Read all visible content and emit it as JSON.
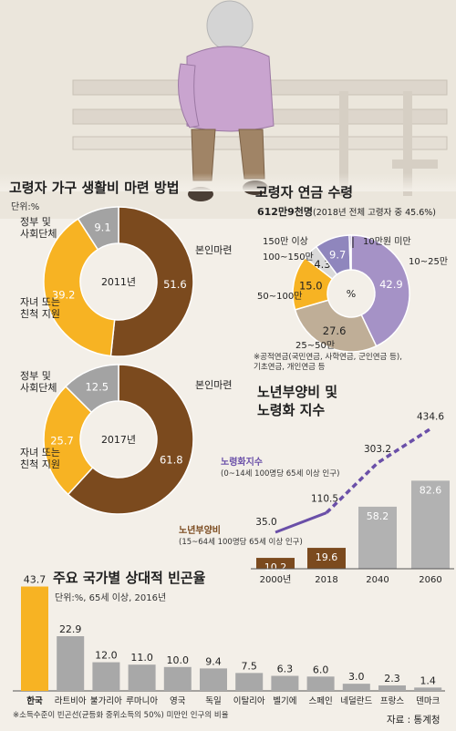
{
  "illustration": {
    "icon": "elderly-person-on-bench"
  },
  "livelihood": {
    "title": "고령자 가구 생활비 마련 방법",
    "unit": "단위:%",
    "labels": {
      "self": "본인마련",
      "gov": [
        "정부 및",
        "사회단체"
      ],
      "children": [
        "자녀 또는",
        "친척 지원"
      ]
    }
  },
  "pension": {
    "title": "고령자 연금 수령",
    "total_bold": "612만9천명",
    "total_paren": "(2018년 전체 고령자 중 45.6%)",
    "center": "%",
    "note": [
      "※공적연금(국민연금, 사학연금, 군인연금 등),",
      "기초연금, 개인연금 등"
    ]
  },
  "dependency": {
    "title": [
      "노년부양비 및",
      "노령화 지수"
    ],
    "aging_label": "노령화지수",
    "aging_desc": "(0~14세 100명당 65세 이상 인구)",
    "dep_label": "노년부양비",
    "dep_desc": "(15~64세 100명당 65세 이상 인구)"
  },
  "poverty": {
    "title": "주요 국가별 상대적 빈곤율",
    "unit": "단위:%, 65세 이상, 2016년",
    "note": "※소득수준이 빈곤선(균등화 중위소득의 50%) 미만인 인구의 비율",
    "source": "자료 : 통계청"
  },
  "colors": {
    "brown": "#7b4a1e",
    "yellow": "#f7b323",
    "gray": "#a3a3a3",
    "purple": "#a592c6",
    "tan": "#bfae97",
    "violet": "#6a4fa8"
  },
  "chart_data": [
    {
      "type": "pie",
      "title": "2011년",
      "series": [
        {
          "label": "본인마련",
          "value": 51.6
        },
        {
          "label": "자녀 또는 친척 지원",
          "value": 39.2
        },
        {
          "label": "정부 및 사회단체",
          "value": 9.1
        }
      ]
    },
    {
      "type": "pie",
      "title": "2017년",
      "series": [
        {
          "label": "본인마련",
          "value": 61.8
        },
        {
          "label": "자녀 또는 친척 지원",
          "value": 25.7
        },
        {
          "label": "정부 및 사회단체",
          "value": 12.5
        }
      ]
    },
    {
      "type": "pie",
      "series": [
        {
          "label": "10~25만",
          "value": 42.9
        },
        {
          "label": "25~50만",
          "value": 27.6
        },
        {
          "label": "50~100만",
          "value": 15.0
        },
        {
          "label": "100~150만",
          "value": 4.3
        },
        {
          "label": "150만 이상",
          "value": 9.7
        },
        {
          "label": "10만원 미만",
          "value": 0.5
        }
      ],
      "value_labels": [
        "42.9",
        "27.6",
        "15.0",
        "4.3",
        "9.7",
        ""
      ]
    },
    {
      "type": "bar",
      "categories": [
        "2000년",
        "2018",
        "2040",
        "2060"
      ],
      "series": [
        {
          "name": "노년부양비",
          "values": [
            10.2,
            19.6,
            58.2,
            82.6
          ]
        },
        {
          "name": "노령화지수",
          "values": [
            35.0,
            110.5,
            303.2,
            434.6
          ]
        }
      ],
      "value_labels": {
        "노년부양비": [
          "10.2",
          "19.6",
          "58.2",
          "82.6"
        ],
        "노령화지수": [
          "35.0",
          "110.5",
          "303.2",
          "434.6"
        ]
      }
    },
    {
      "type": "bar",
      "categories": [
        "한국",
        "라트비아",
        "불가리아",
        "루마니아",
        "영국",
        "독일",
        "이탈리아",
        "벨기에",
        "스페인",
        "네덜란드",
        "프랑스",
        "덴마크"
      ],
      "values": [
        43.7,
        22.9,
        12.0,
        11.0,
        10.0,
        9.4,
        7.5,
        6.3,
        6.0,
        3.0,
        2.3,
        1.4
      ],
      "value_labels": [
        "43.7",
        "22.9",
        "12.0",
        "11.0",
        "10.0",
        "9.4",
        "7.5",
        "6.3",
        "6.0",
        "3.0",
        "2.3",
        "1.4"
      ]
    }
  ]
}
